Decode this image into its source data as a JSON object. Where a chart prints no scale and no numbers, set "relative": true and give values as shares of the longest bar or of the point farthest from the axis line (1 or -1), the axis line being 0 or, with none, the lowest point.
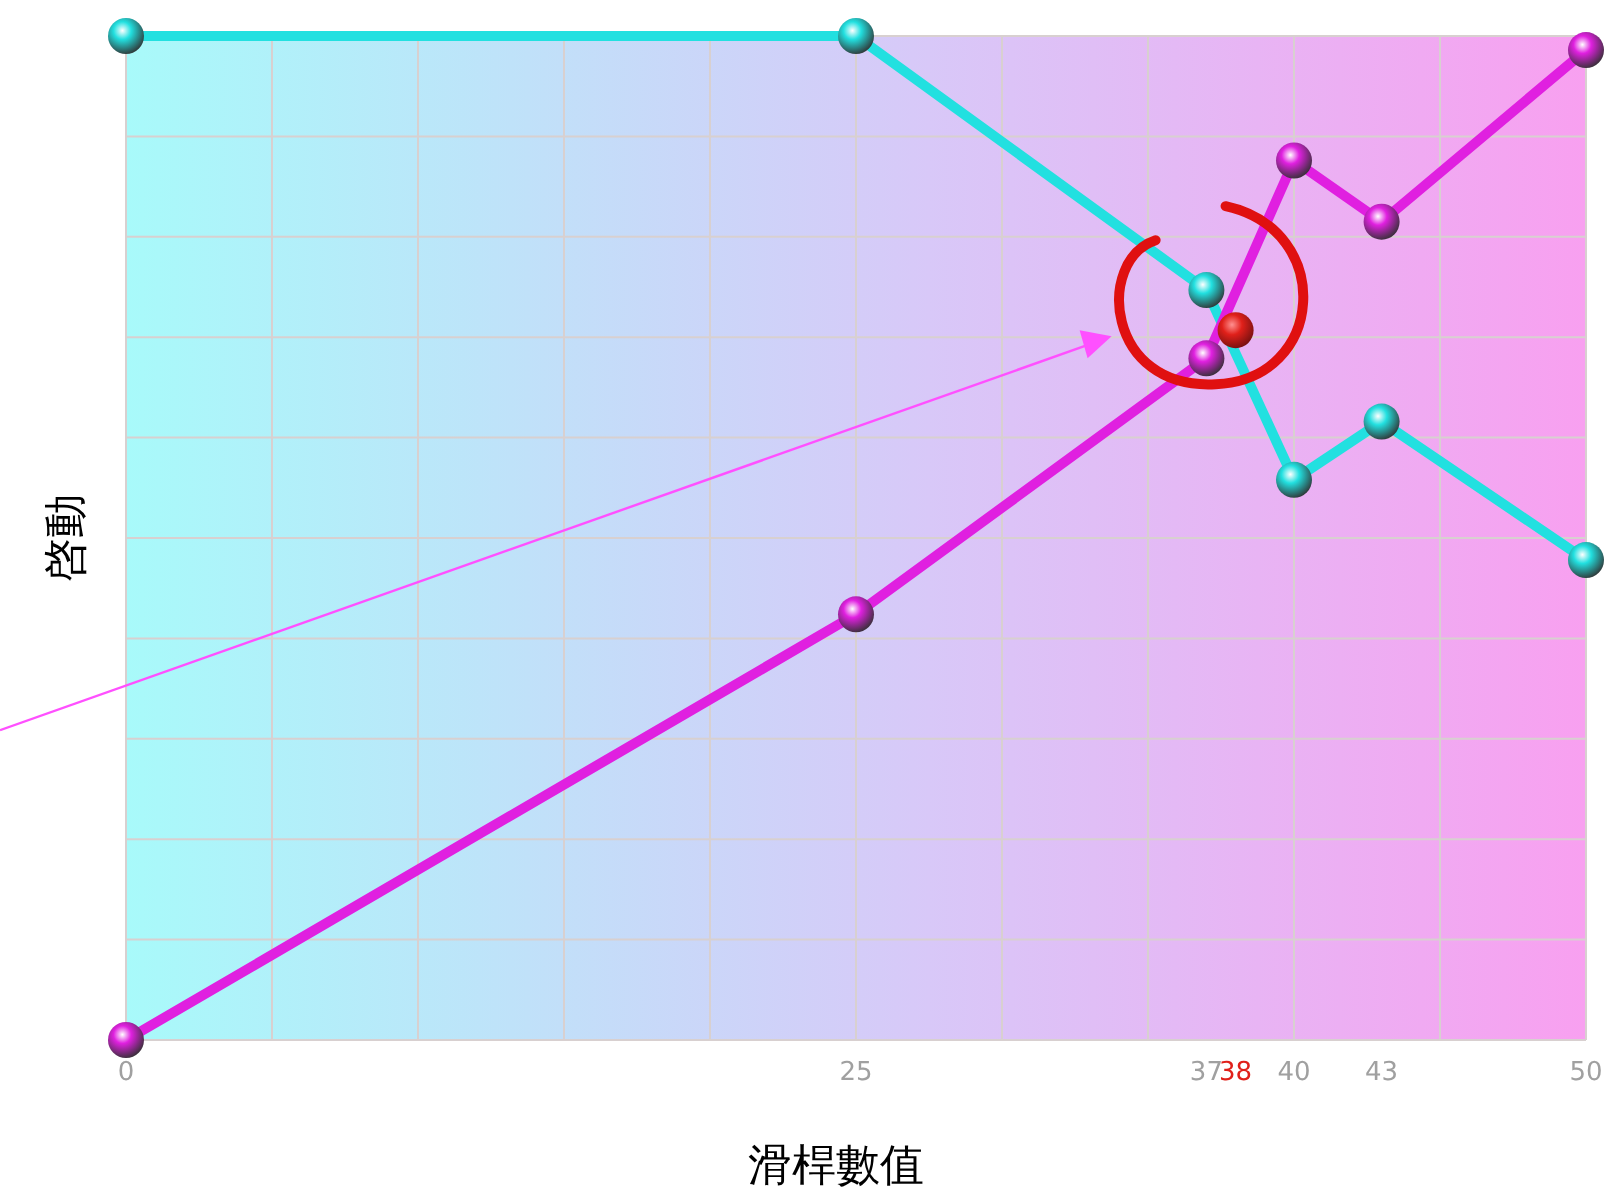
{
  "chart_data": {
    "type": "line",
    "xlabel": "滑桿數值",
    "ylabel": "啓動",
    "relative": true,
    "x": [
      0,
      25,
      37,
      40,
      43,
      50
    ],
    "xlim": [
      0,
      50
    ],
    "xticks": [
      0,
      25,
      37,
      38,
      40,
      43,
      50
    ],
    "grid": true,
    "marker": "circle",
    "line_style": "solid",
    "series": [
      {
        "color": "#22e0e0",
        "values": [
          1,
          1,
          0.747,
          0.558,
          0.616,
          0.478
        ]
      },
      {
        "color": "#e020e0",
        "values": [
          0,
          0.424,
          0.679,
          0.876,
          0.815,
          0.986
        ]
      },
      {
        "type": "scatter",
        "color": "#e0201a",
        "x": [
          38
        ],
        "values": [
          0.707
        ]
      }
    ]
  }
}
